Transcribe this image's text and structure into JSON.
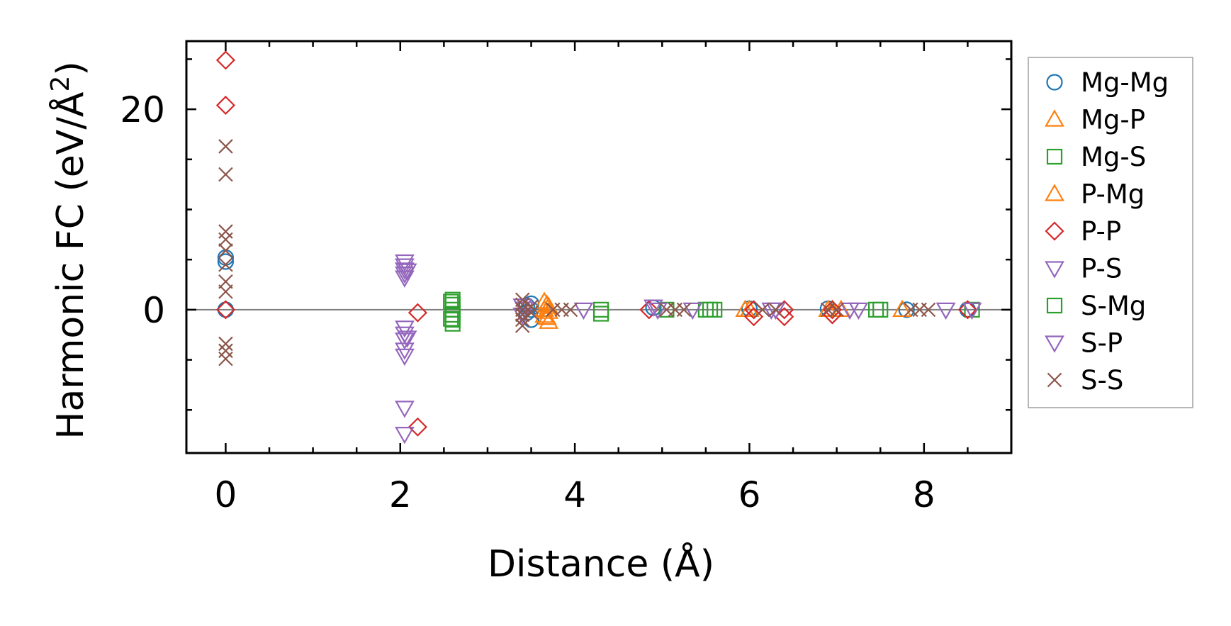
{
  "chart_data": {
    "type": "scatter",
    "xlabel": "Distance (Å)",
    "ylabel": "Harmonic FC (eV/Å",
    "ylabel_sup": "2",
    "ylabel_close": ")",
    "xlim": [
      -0.45,
      9.0
    ],
    "ylim": [
      -14.3,
      26.8
    ],
    "xticks": [
      0,
      2,
      4,
      6,
      8
    ],
    "xtick_labels": [
      "0",
      "2",
      "4",
      "6",
      "8"
    ],
    "yticks": [
      0,
      20
    ],
    "ytick_labels": [
      "0",
      "20"
    ],
    "x_minor_step": 0.5,
    "y_minor_step": 5,
    "zero_line": true,
    "grid": false,
    "legend_position": "outside-right",
    "series": [
      {
        "name": "Mg-Mg",
        "marker": "circle",
        "color": "#1f77b4",
        "points": [
          [
            0,
            5.2
          ],
          [
            0,
            4.8
          ],
          [
            0,
            0.0
          ],
          [
            3.45,
            0.4
          ],
          [
            3.45,
            -0.3
          ],
          [
            3.5,
            0.6
          ],
          [
            3.5,
            -1.0
          ],
          [
            3.5,
            0.0
          ],
          [
            4.9,
            0.2
          ],
          [
            6.0,
            0.1
          ],
          [
            6.9,
            0.1
          ],
          [
            7.8,
            0.0
          ],
          [
            8.5,
            0.0
          ]
        ]
      },
      {
        "name": "Mg-P",
        "marker": "triangle-up",
        "color": "#ff7f0e",
        "points": [
          [
            3.65,
            0.8
          ],
          [
            3.65,
            -0.6
          ],
          [
            3.65,
            0.0
          ],
          [
            3.7,
            0.3
          ],
          [
            3.7,
            -1.2
          ],
          [
            3.7,
            -0.2
          ],
          [
            5.95,
            0.0
          ],
          [
            6.9,
            0.0
          ],
          [
            7.05,
            0.0
          ],
          [
            7.75,
            0.0
          ]
        ]
      },
      {
        "name": "Mg-S",
        "marker": "square",
        "color": "#2ca02c",
        "points": [
          [
            2.6,
            1.0
          ],
          [
            2.6,
            0.5
          ],
          [
            2.6,
            0.0
          ],
          [
            2.6,
            -0.5
          ],
          [
            2.6,
            -1.0
          ],
          [
            2.6,
            -1.4
          ],
          [
            4.3,
            0.0
          ],
          [
            4.3,
            -0.4
          ],
          [
            5.05,
            0.0
          ],
          [
            5.5,
            0.0
          ],
          [
            5.6,
            0.0
          ],
          [
            7.45,
            0.0
          ],
          [
            8.55,
            0.0
          ]
        ]
      },
      {
        "name": "P-Mg",
        "marker": "triangle-up",
        "color": "#ff7f0e",
        "points": [
          [
            3.68,
            0.5
          ],
          [
            3.68,
            -0.8
          ],
          [
            6.0,
            0.0
          ],
          [
            6.95,
            0.0
          ]
        ]
      },
      {
        "name": "P-P",
        "marker": "diamond",
        "color": "#d62728",
        "points": [
          [
            0,
            24.9
          ],
          [
            0,
            20.4
          ],
          [
            0,
            0.0
          ],
          [
            2.2,
            -0.3
          ],
          [
            2.2,
            -11.7
          ],
          [
            4.85,
            0.0
          ],
          [
            6.05,
            0.0
          ],
          [
            6.05,
            -0.7
          ],
          [
            6.4,
            0.0
          ],
          [
            6.4,
            -0.7
          ],
          [
            6.95,
            0.0
          ],
          [
            6.95,
            -0.5
          ],
          [
            8.5,
            0.0
          ]
        ]
      },
      {
        "name": "P-S",
        "marker": "triangle-down",
        "color": "#9467bd",
        "points": [
          [
            2.05,
            4.8
          ],
          [
            2.05,
            4.4
          ],
          [
            2.05,
            4.0
          ],
          [
            2.05,
            3.6
          ],
          [
            2.05,
            3.2
          ],
          [
            2.05,
            -1.8
          ],
          [
            2.05,
            -2.4
          ],
          [
            2.05,
            -3.0
          ],
          [
            2.05,
            -4.0
          ],
          [
            2.05,
            -4.6
          ],
          [
            2.05,
            -9.8
          ],
          [
            2.05,
            -12.4
          ],
          [
            3.4,
            0.4
          ],
          [
            3.4,
            -0.5
          ],
          [
            4.1,
            0.0
          ],
          [
            4.9,
            0.3
          ],
          [
            5.35,
            0.0
          ],
          [
            6.3,
            0.0
          ],
          [
            7.15,
            0.0
          ],
          [
            8.25,
            0.0
          ]
        ]
      },
      {
        "name": "S-Mg",
        "marker": "square",
        "color": "#2ca02c",
        "points": [
          [
            2.58,
            0.8
          ],
          [
            2.58,
            -0.9
          ],
          [
            5.55,
            0.0
          ],
          [
            7.5,
            0.0
          ]
        ]
      },
      {
        "name": "S-P",
        "marker": "triangle-down",
        "color": "#9467bd",
        "points": [
          [
            2.08,
            3.9
          ],
          [
            2.08,
            -2.8
          ],
          [
            3.42,
            0.1
          ],
          [
            4.95,
            0.0
          ],
          [
            6.25,
            0.0
          ],
          [
            7.25,
            0.0
          ],
          [
            8.55,
            0.0
          ]
        ]
      },
      {
        "name": "S-S",
        "marker": "x",
        "color": "#8c564b",
        "points": [
          [
            0,
            16.3
          ],
          [
            0,
            13.5
          ],
          [
            0,
            7.8
          ],
          [
            0,
            7.0
          ],
          [
            0,
            5.9
          ],
          [
            0,
            4.5
          ],
          [
            0,
            2.8
          ],
          [
            0,
            1.8
          ],
          [
            0,
            -3.4
          ],
          [
            0,
            -4.1
          ],
          [
            0,
            -4.9
          ],
          [
            3.4,
            1.0
          ],
          [
            3.4,
            0.5
          ],
          [
            3.4,
            0.0
          ],
          [
            3.4,
            -0.5
          ],
          [
            3.4,
            -1.0
          ],
          [
            3.4,
            -1.6
          ],
          [
            3.5,
            0.3
          ],
          [
            3.5,
            -0.3
          ],
          [
            3.75,
            0.0
          ],
          [
            3.85,
            0.0
          ],
          [
            3.95,
            0.0
          ],
          [
            5.05,
            0.0
          ],
          [
            5.15,
            0.0
          ],
          [
            5.25,
            0.0
          ],
          [
            6.15,
            0.0
          ],
          [
            6.3,
            0.0
          ],
          [
            6.9,
            0.0
          ],
          [
            7.0,
            0.0
          ],
          [
            7.85,
            0.0
          ],
          [
            7.95,
            0.0
          ],
          [
            8.05,
            0.0
          ]
        ]
      }
    ]
  }
}
